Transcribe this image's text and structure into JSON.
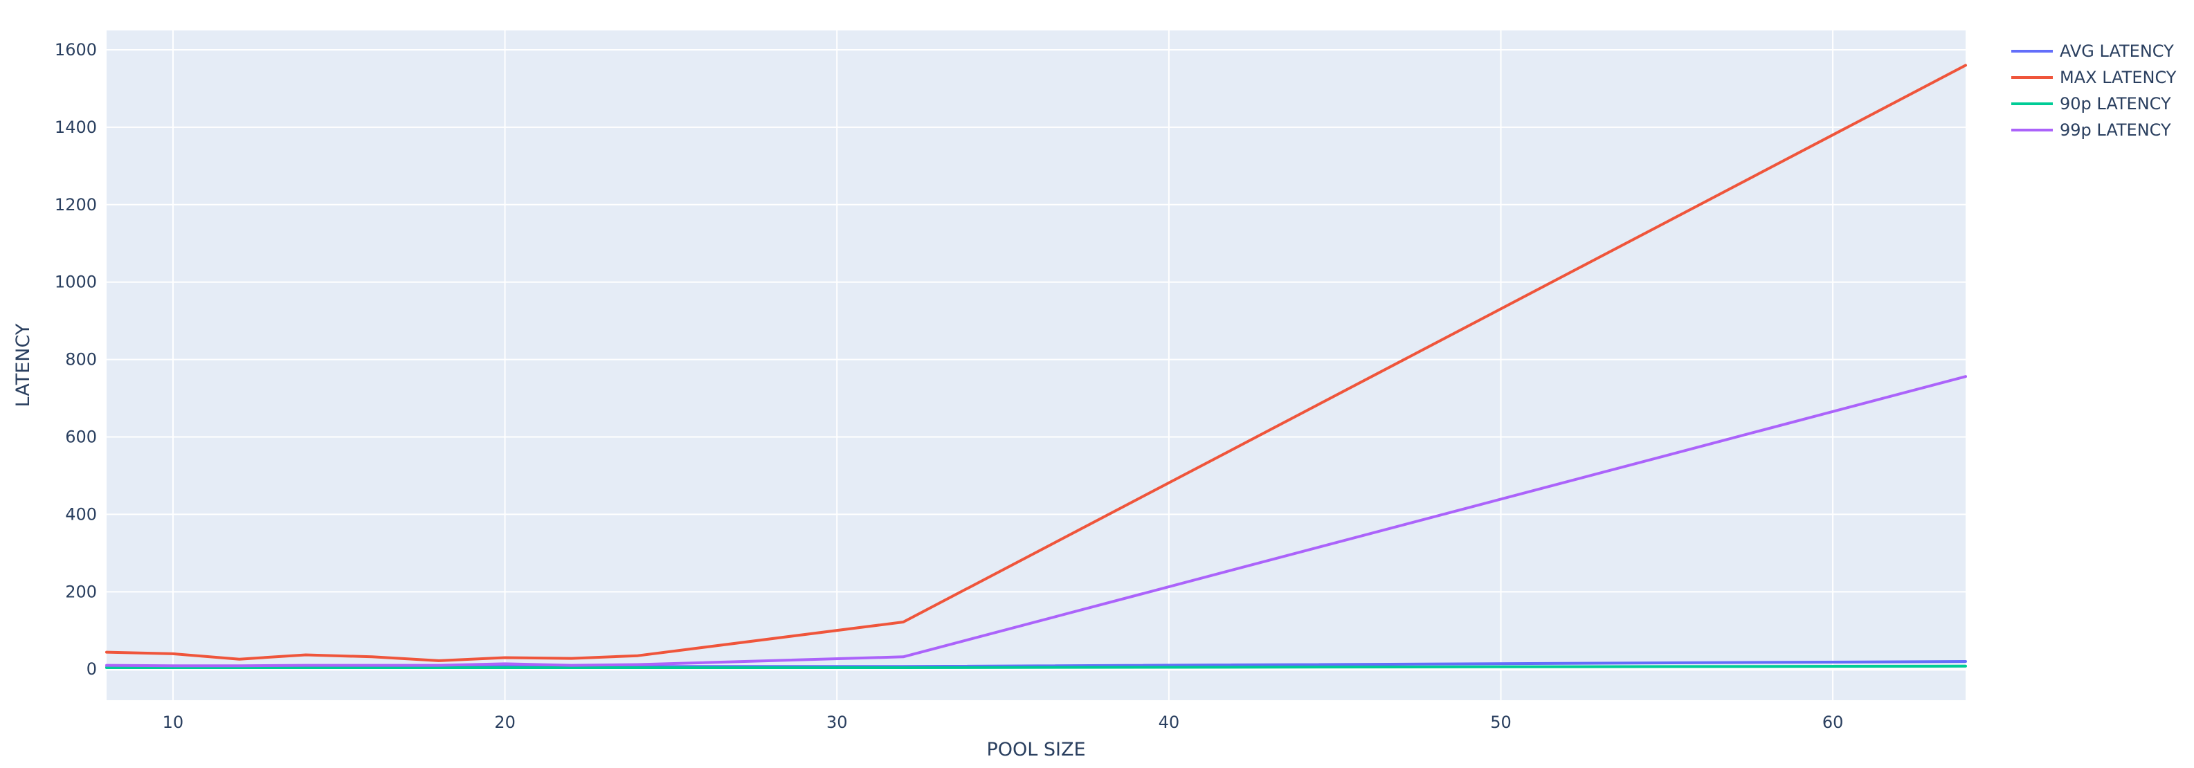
{
  "chart_data": {
    "type": "line",
    "title": "",
    "xlabel": "POOL SIZE",
    "ylabel": "LATENCY",
    "xlim": [
      8,
      64
    ],
    "ylim": [
      -80,
      1650
    ],
    "x_ticks": [
      10,
      20,
      30,
      40,
      50,
      60
    ],
    "y_ticks": [
      0,
      200,
      400,
      600,
      800,
      1000,
      1200,
      1400,
      1600
    ],
    "grid": true,
    "legend_position": "top-right",
    "x": [
      8,
      10,
      12,
      14,
      16,
      18,
      20,
      22,
      24,
      32,
      64
    ],
    "series": [
      {
        "name": "AVG LATENCY",
        "color": "#636efa",
        "values": [
          5,
          5,
          5,
          6,
          6,
          6,
          7,
          7,
          7,
          7,
          20
        ]
      },
      {
        "name": "MAX LATENCY",
        "color": "#EF553B",
        "values": [
          44,
          40,
          26,
          37,
          32,
          22,
          30,
          28,
          35,
          122,
          1560
        ]
      },
      {
        "name": "90p LATENCY",
        "color": "#00cc96",
        "values": [
          4,
          4,
          4,
          4,
          4,
          4,
          4,
          4,
          4,
          4,
          8
        ]
      },
      {
        "name": "99p LATENCY",
        "color": "#ab63fa",
        "values": [
          10,
          9,
          9,
          10,
          10,
          10,
          14,
          10,
          12,
          32,
          756
        ]
      }
    ]
  }
}
